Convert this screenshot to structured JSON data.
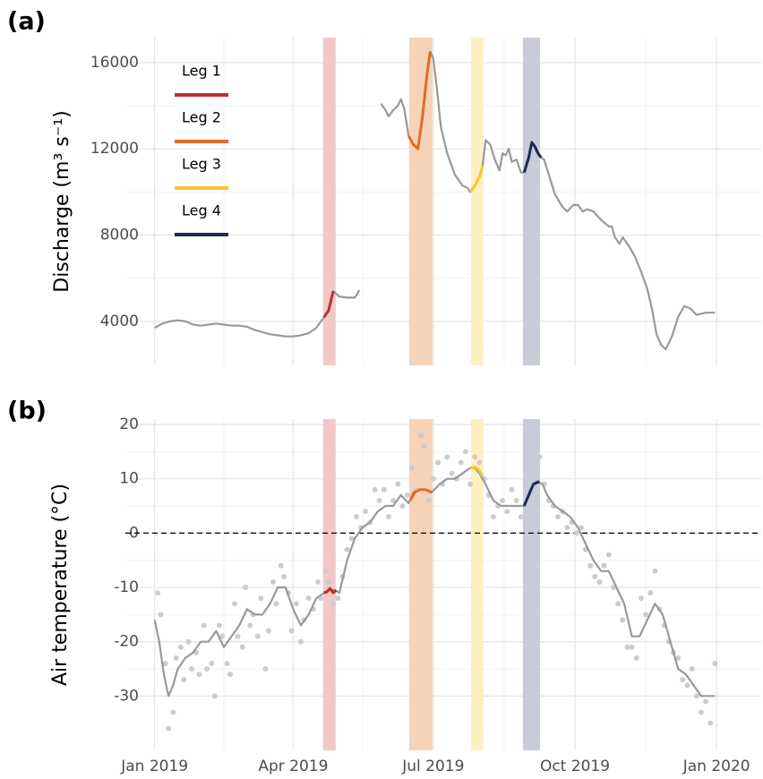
{
  "chart_data": [
    {
      "type": "line",
      "panel_label": "(a)",
      "ylabel": "Discharge (m³ s⁻¹)",
      "xlim": [
        -19,
        394
      ],
      "xticks": [
        0,
        90,
        181,
        273,
        365
      ],
      "ylim": [
        1960,
        17160
      ],
      "yticks": [
        4000,
        8000,
        12000,
        16000
      ],
      "grid": true,
      "legend": "top-left",
      "spans": [
        {
          "x": [
            109.4,
            117.6
          ],
          "color": "#f2c9c7"
        },
        {
          "x": [
            165.3,
            180.4
          ],
          "color": "#f6d2b6"
        },
        {
          "x": [
            205.5,
            213.6
          ],
          "color": "#fdf0c0"
        },
        {
          "x": [
            239.2,
            250.3
          ],
          "color": "#c9ccd8"
        }
      ],
      "series": [
        {
          "color": "#999999",
          "x": [
            0,
            5,
            10,
            15,
            20,
            25,
            30,
            35,
            40,
            45,
            50,
            55,
            60,
            65,
            70,
            75,
            80,
            85,
            90,
            95,
            100,
            105,
            110,
            113,
            116,
            120,
            125,
            130,
            133,
            140,
            147,
            150,
            152,
            155,
            158,
            160,
            162,
            165,
            168,
            171,
            174,
            177,
            179,
            181,
            183,
            186,
            190,
            195,
            200,
            203,
            205,
            208,
            211,
            213,
            215,
            218,
            221,
            224,
            226,
            228,
            230,
            232,
            235,
            238,
            240,
            243,
            245,
            247,
            249,
            251,
            253,
            256,
            260,
            265,
            268,
            272,
            275,
            278,
            281,
            285,
            290,
            295,
            297,
            299,
            302,
            304,
            308,
            312,
            316,
            320,
            323,
            326,
            329,
            332,
            336,
            340,
            344,
            348,
            352,
            358,
            364
          ],
          "values": [
            3700,
            3900,
            4000,
            4050,
            4000,
            3850,
            3800,
            3850,
            3900,
            3850,
            3800,
            3800,
            3750,
            3600,
            3500,
            3400,
            3350,
            3300,
            3300,
            3350,
            3450,
            3700,
            4200,
            4500,
            5400,
            5150,
            5100,
            5100,
            5450,
            null,
            14100,
            13800,
            13500,
            13800,
            14000,
            14300,
            13900,
            12600,
            12200,
            12000,
            13500,
            15500,
            16500,
            16200,
            15000,
            13000,
            11800,
            10800,
            10300,
            10200,
            10000,
            10300,
            10700,
            11200,
            12400,
            12200,
            11500,
            11000,
            11800,
            11700,
            12000,
            11400,
            11500,
            10900,
            10900,
            11600,
            12300,
            12100,
            11800,
            11600,
            11500,
            10800,
            9900,
            9300,
            9100,
            9400,
            9400,
            9100,
            9200,
            9100,
            8700,
            8400,
            8400,
            7900,
            7600,
            7900,
            7500,
            7000,
            6300,
            5500,
            4600,
            3400,
            2900,
            2700,
            3300,
            4200,
            4700,
            4600,
            4300,
            4400,
            4400
          ]
        },
        {
          "name": "Leg 1",
          "color": "#b8312a",
          "x": [
            110,
            113,
            116
          ],
          "values": [
            4200,
            4500,
            5400
          ]
        },
        {
          "name": "Leg 2",
          "color": "#e06c26",
          "x": [
            165,
            168,
            171,
            174,
            177,
            179
          ],
          "values": [
            12600,
            12200,
            12000,
            13500,
            15500,
            16500
          ]
        },
        {
          "name": "Leg 3",
          "color": "#f7c531",
          "x": [
            205,
            208,
            211,
            213
          ],
          "values": [
            10000,
            10300,
            10700,
            11200
          ]
        },
        {
          "name": "Leg 4",
          "color": "#1c2a55",
          "x": [
            240,
            243,
            245,
            247,
            249,
            251
          ],
          "values": [
            10900,
            11600,
            12300,
            12100,
            11800,
            11600
          ]
        }
      ]
    },
    {
      "type": "line",
      "panel_label": "(b)",
      "ylabel": "Air temperature (°C)",
      "xlim": [
        -19,
        394
      ],
      "xticks": [
        {
          "value": 0,
          "label": "Jan 2019"
        },
        {
          "value": 90,
          "label": "Apr 2019"
        },
        {
          "value": 181,
          "label": "Jul 2019"
        },
        {
          "value": 273,
          "label": "Oct 2019"
        },
        {
          "value": 365,
          "label": "Jan 2020"
        }
      ],
      "ylim": [
        -40,
        21
      ],
      "yticks": [
        -30,
        -20,
        -10,
        0,
        10,
        20
      ],
      "grid": true,
      "hline": 0,
      "spans": [
        {
          "x": [
            109.4,
            117.6
          ],
          "color": "#f2c9c7"
        },
        {
          "x": [
            165.3,
            180.4
          ],
          "color": "#f6d2b6"
        },
        {
          "x": [
            205.5,
            213.6
          ],
          "color": "#fdf0c0"
        },
        {
          "x": [
            239.2,
            250.3
          ],
          "color": "#c9ccd8"
        }
      ],
      "series": [
        {
          "type": "scatter",
          "color": "#cccccc",
          "x": [
            2,
            4,
            7,
            9,
            12,
            14,
            17,
            19,
            22,
            24,
            27,
            29,
            32,
            34,
            37,
            39,
            42,
            44,
            47,
            49,
            52,
            54,
            57,
            59,
            62,
            64,
            67,
            69,
            72,
            74,
            77,
            79,
            82,
            84,
            87,
            89,
            92,
            95,
            97,
            100,
            103,
            106,
            108,
            111,
            113,
            116,
            119,
            122,
            125,
            128,
            131,
            134,
            137,
            140,
            143,
            146,
            149,
            152,
            155,
            158,
            161,
            164,
            167,
            170,
            173,
            175,
            178,
            181,
            184,
            187,
            190,
            193,
            196,
            199,
            202,
            205,
            208,
            211,
            214,
            217,
            220,
            223,
            226,
            229,
            232,
            235,
            238,
            241,
            244,
            247,
            250,
            253,
            256,
            259,
            262,
            265,
            268,
            271,
            274,
            277,
            280,
            283,
            286,
            289,
            292,
            295,
            298,
            301,
            304,
            307,
            310,
            313,
            316,
            319,
            322,
            325,
            328,
            331,
            334,
            337,
            340,
            343,
            346,
            349,
            352,
            355,
            358,
            361,
            364
          ],
          "values": [
            -11,
            -15,
            -24,
            -36,
            -33,
            -23,
            -21,
            -27,
            -20,
            -25,
            -22,
            -26,
            -17,
            -25,
            -24,
            -30,
            -17,
            -19,
            -24,
            -26,
            -13,
            -19,
            -21,
            -10,
            -17,
            -15,
            -19,
            -12,
            -25,
            -18,
            -9,
            -13,
            -6,
            -8,
            -11,
            -18,
            -13,
            -20,
            -16,
            -12,
            -14,
            -9,
            -12,
            -7,
            -9,
            -13,
            -12,
            -8,
            -3,
            -1,
            3,
            1,
            4,
            2,
            8,
            6,
            8,
            3,
            6,
            9,
            5,
            7,
            12,
            8,
            18,
            16,
            6,
            10,
            13,
            9,
            14,
            11,
            10,
            13,
            15,
            9,
            14,
            13,
            10,
            7,
            3,
            5,
            6,
            4,
            8,
            6,
            3,
            4,
            7,
            12,
            14,
            9,
            6,
            5,
            3,
            4,
            1,
            2,
            0,
            1,
            -3,
            -6,
            -8,
            -9,
            -6,
            -4,
            -10,
            -13,
            -16,
            -21,
            -21,
            -23,
            -12,
            -15,
            -11,
            -7,
            -14,
            -17,
            -20,
            -22,
            -23,
            -27,
            -28,
            -25,
            -30,
            -33,
            -31,
            -35,
            -24
          ]
        },
        {
          "color": "#999999",
          "x": [
            0,
            3,
            6,
            9,
            12,
            15,
            20,
            25,
            30,
            35,
            40,
            45,
            50,
            55,
            60,
            65,
            70,
            75,
            80,
            85,
            90,
            95,
            100,
            105,
            110,
            113,
            117,
            120,
            125,
            130,
            135,
            140,
            145,
            150,
            155,
            160,
            165,
            168,
            172,
            176,
            180,
            185,
            190,
            195,
            200,
            205,
            208,
            211,
            215,
            220,
            225,
            230,
            235,
            240,
            244,
            248,
            252,
            255,
            260,
            265,
            270,
            275,
            280,
            285,
            290,
            295,
            300,
            305,
            310,
            315,
            320,
            325,
            330,
            335,
            340,
            345,
            350,
            355,
            360,
            364
          ],
          "values": [
            -16,
            -20,
            -26,
            -30,
            -28,
            -25,
            -23,
            -22,
            -20,
            -20,
            -18,
            -21,
            -19,
            -17,
            -14,
            -15,
            -15,
            -13,
            -10,
            -10,
            -14,
            -17,
            -15,
            -12,
            -11,
            -10.5,
            -10.5,
            -11,
            -5,
            -1,
            1,
            2,
            4,
            5,
            5,
            7,
            5.5,
            7.5,
            8,
            8,
            7.5,
            9,
            10,
            10,
            11,
            12,
            12,
            11,
            9,
            6,
            5,
            5,
            5,
            5,
            8,
            9.5,
            9,
            7,
            5,
            4,
            3,
            1,
            -2,
            -5,
            -7,
            -7,
            -10,
            -13,
            -19,
            -19,
            -16,
            -13,
            -15,
            -20,
            -25,
            -26,
            -28,
            -30,
            -30,
            -30
          ]
        },
        {
          "color": "#b8312a",
          "x": [
            110,
            112,
            114,
            116,
            118
          ],
          "values": [
            -11,
            -10.8,
            -10.2,
            -11,
            -10.5
          ]
        },
        {
          "color": "#e06c26",
          "x": [
            166,
            169,
            172,
            176,
            180
          ],
          "values": [
            6,
            7.5,
            8,
            8,
            7.5
          ]
        },
        {
          "color": "#f7c531",
          "x": [
            205,
            208,
            211,
            213
          ],
          "values": [
            12,
            12.2,
            11.5,
            10.5
          ]
        },
        {
          "color": "#1c2a55",
          "x": [
            240,
            243,
            246,
            250
          ],
          "values": [
            5,
            7,
            9,
            9.5
          ]
        }
      ]
    }
  ]
}
